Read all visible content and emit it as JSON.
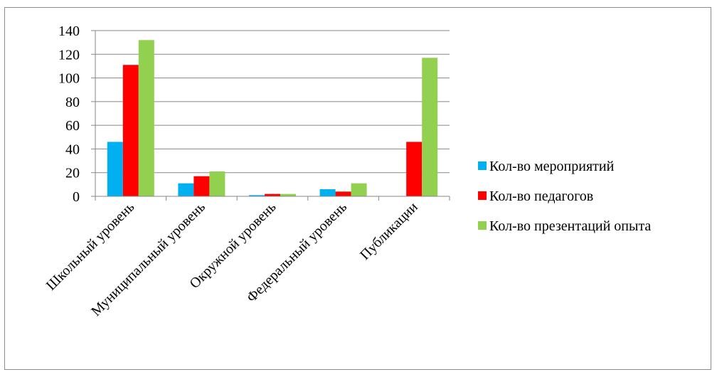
{
  "chart_data": {
    "type": "bar",
    "categories": [
      "Школьный уровень",
      "Муниципальный уровень",
      "Окружной уровень",
      "Федеральный уровень",
      "Публикации"
    ],
    "series": [
      {
        "name": "Кол-во мероприятий",
        "color": "#00B0F0",
        "values": [
          46,
          11,
          1,
          6,
          0
        ]
      },
      {
        "name": "Кол-во педагогов",
        "color": "#FF0000",
        "values": [
          111,
          17,
          2,
          4,
          46
        ]
      },
      {
        "name": "Кол-во презентаций опыта",
        "color": "#92D050",
        "values": [
          132,
          21,
          2,
          11,
          117
        ]
      }
    ],
    "ylim": [
      0,
      140
    ],
    "yticks": [
      0,
      20,
      40,
      60,
      80,
      100,
      120,
      140
    ],
    "grid": true,
    "legend_position": "right",
    "title": "",
    "xlabel": "",
    "ylabel": ""
  }
}
